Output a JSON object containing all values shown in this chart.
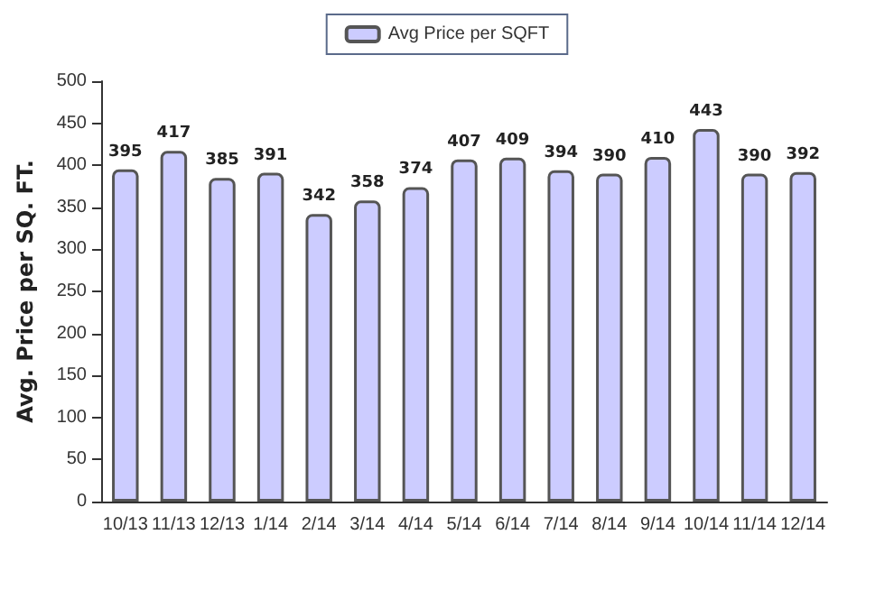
{
  "chart_data": {
    "type": "bar",
    "ylabel": "Avg. Price per SQ. FT.",
    "categories": [
      "10/13",
      "11/13",
      "12/13",
      "1/14",
      "2/14",
      "3/14",
      "4/14",
      "5/14",
      "6/14",
      "7/14",
      "8/14",
      "9/14",
      "10/14",
      "11/14",
      "12/14"
    ],
    "series": [
      {
        "name": "Avg Price per SQFT",
        "color": "#ccccff",
        "values": [
          395,
          417,
          385,
          391,
          342,
          358,
          374,
          407,
          409,
          394,
          390,
          410,
          443,
          390,
          392
        ]
      }
    ],
    "ylim": [
      0,
      500
    ],
    "yticks": [
      0,
      50,
      100,
      150,
      200,
      250,
      300,
      350,
      400,
      450,
      500
    ],
    "grid": false,
    "legend": "top",
    "data_labels": true
  }
}
